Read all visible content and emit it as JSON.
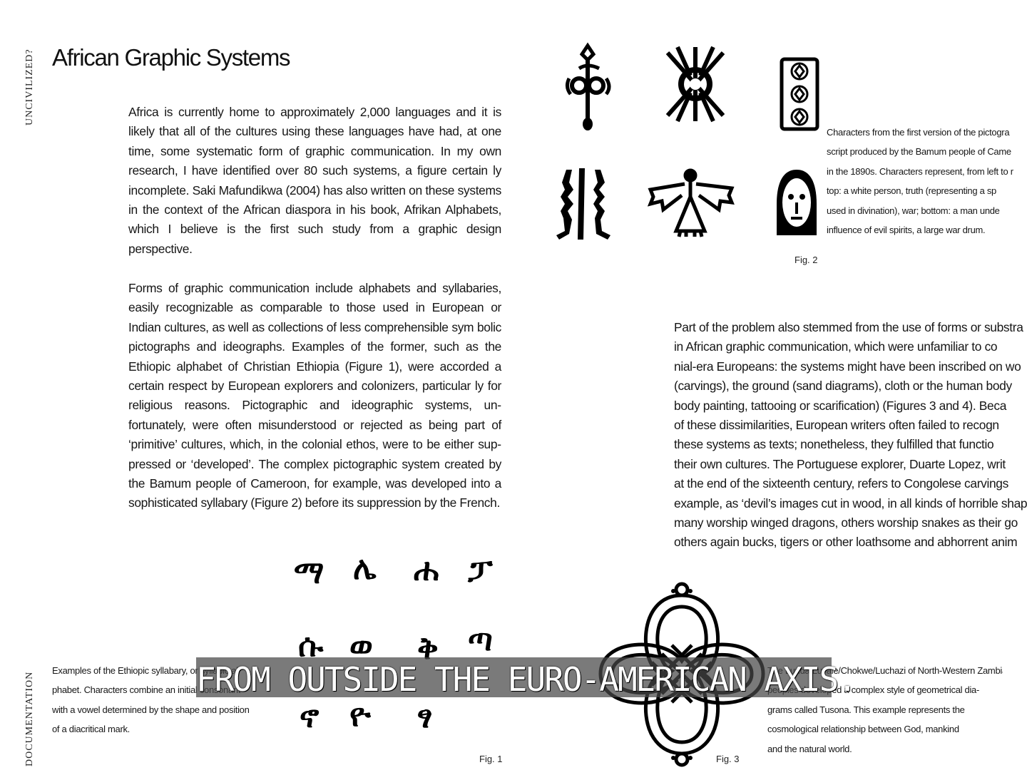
{
  "sidebar": {
    "top_label": "UNCIVILIZED?",
    "bottom_label": "DOCUMENTATION"
  },
  "title": "African Graphic Systems",
  "paragraphs": {
    "p1": "Africa is currently home to approximately 2,000 languages and it is likely that all of the cultures using these languages have had, at one time, some systematic form of graphic communication. In my own research, I have identified over 80 such systems, a figure certain­ ly incomplete. Saki Mafundikwa (2004) has also written on these systems in the context of the African diaspora in his book, Afrikan Alphabets, which I believe is the first such study from a graphic design perspective.",
    "p2": "Forms of graphic communication include alphabets and syllabaries, easily recognizable as comparable to those used in European or Indian cultures, as well as collections of less comprehensible sym­ bolic pictographs and ideographs. Examples of the former, such as the Ethiopic alphabet of Christian Ethiopia (Figure 1), were accorded a certain respect by European explorers and colonizers, particular­ ly for religious reasons. Pictographic and ideographic systems, un­ fortunately, were often misunderstood or rejected as being part of ‘primitive’ cultures, which, in the colonial ethos, were to be either sup­ pressed or ‘developed’. The complex pictographic system created by the Bamum people of Cameroon, for example, was developed into a sophisticated syllabary (Figure 2) before its suppression by the French.",
    "p3_lines": [
      "Part of the problem also stemmed from the use of forms or substra",
      "in African graphic communication, which were unfamiliar to co",
      "nial-era Europeans: the systems might have been inscribed on wo",
      "(carvings), the ground (sand diagrams), cloth or the human body",
      "body painting, tattooing or scarification) (Figures 3 and 4). Beca",
      "of these dissimilarities, European writers often failed to recogn",
      "these systems as texts; nonetheless, they fulfilled that functio",
      "their own cultures. The Portuguese explorer, Duarte Lopez, writ",
      "at the end of the sixteenth century, refers to Congolese carvings",
      "example, as ‘devil’s images cut in wood, in all kinds of horrible shap",
      "many worship winged dragons, others worship snakes as their go",
      "others again bucks, tigers or other loathsome and abhorrent anim"
    ]
  },
  "figures": {
    "fig2": {
      "label": "Fig. 2",
      "caption_lines": [
        "Characters from the first version of the pictogra",
        "script produced by the Bamum people of Came",
        "in the 1890s. Characters represent, from left to r",
        "top: a white person, truth (representing a sp",
        "used in divination), war; bottom: a man unde",
        "influence of evil spirits, a large war drum."
      ]
    },
    "fig1": {
      "label": "Fig. 1",
      "caption_lines": [
        "Examples of the Ethiopic syllabary, or syllabic al",
        "phabet. Characters combine an initial consonant",
        "with a vowel determined by the shape and position",
        "of a diacritical mark."
      ],
      "glyphs": [
        "ማ",
        "ሌ",
        "ሐ",
        "ፓ",
        "ሱ",
        "ወ",
        "ቅ",
        "ጣ",
        "ኖ",
        "ዮ",
        "ፃ",
        "቉"
      ]
    },
    "fig3": {
      "label": "Fig. 3",
      "caption_lines": [
        "The Lunda/Luvale/Chokwe/Luchazi of North-Western Zambia and related",
        "peoples developed a complex style of geometrical dia-",
        "grams called Tusona. This example represents the",
        "cosmological relationship between God, mankind",
        "and the natural world."
      ]
    }
  },
  "subtitle": "FROM OUTSIDE THE EURO-AMERICAN AXIS."
}
